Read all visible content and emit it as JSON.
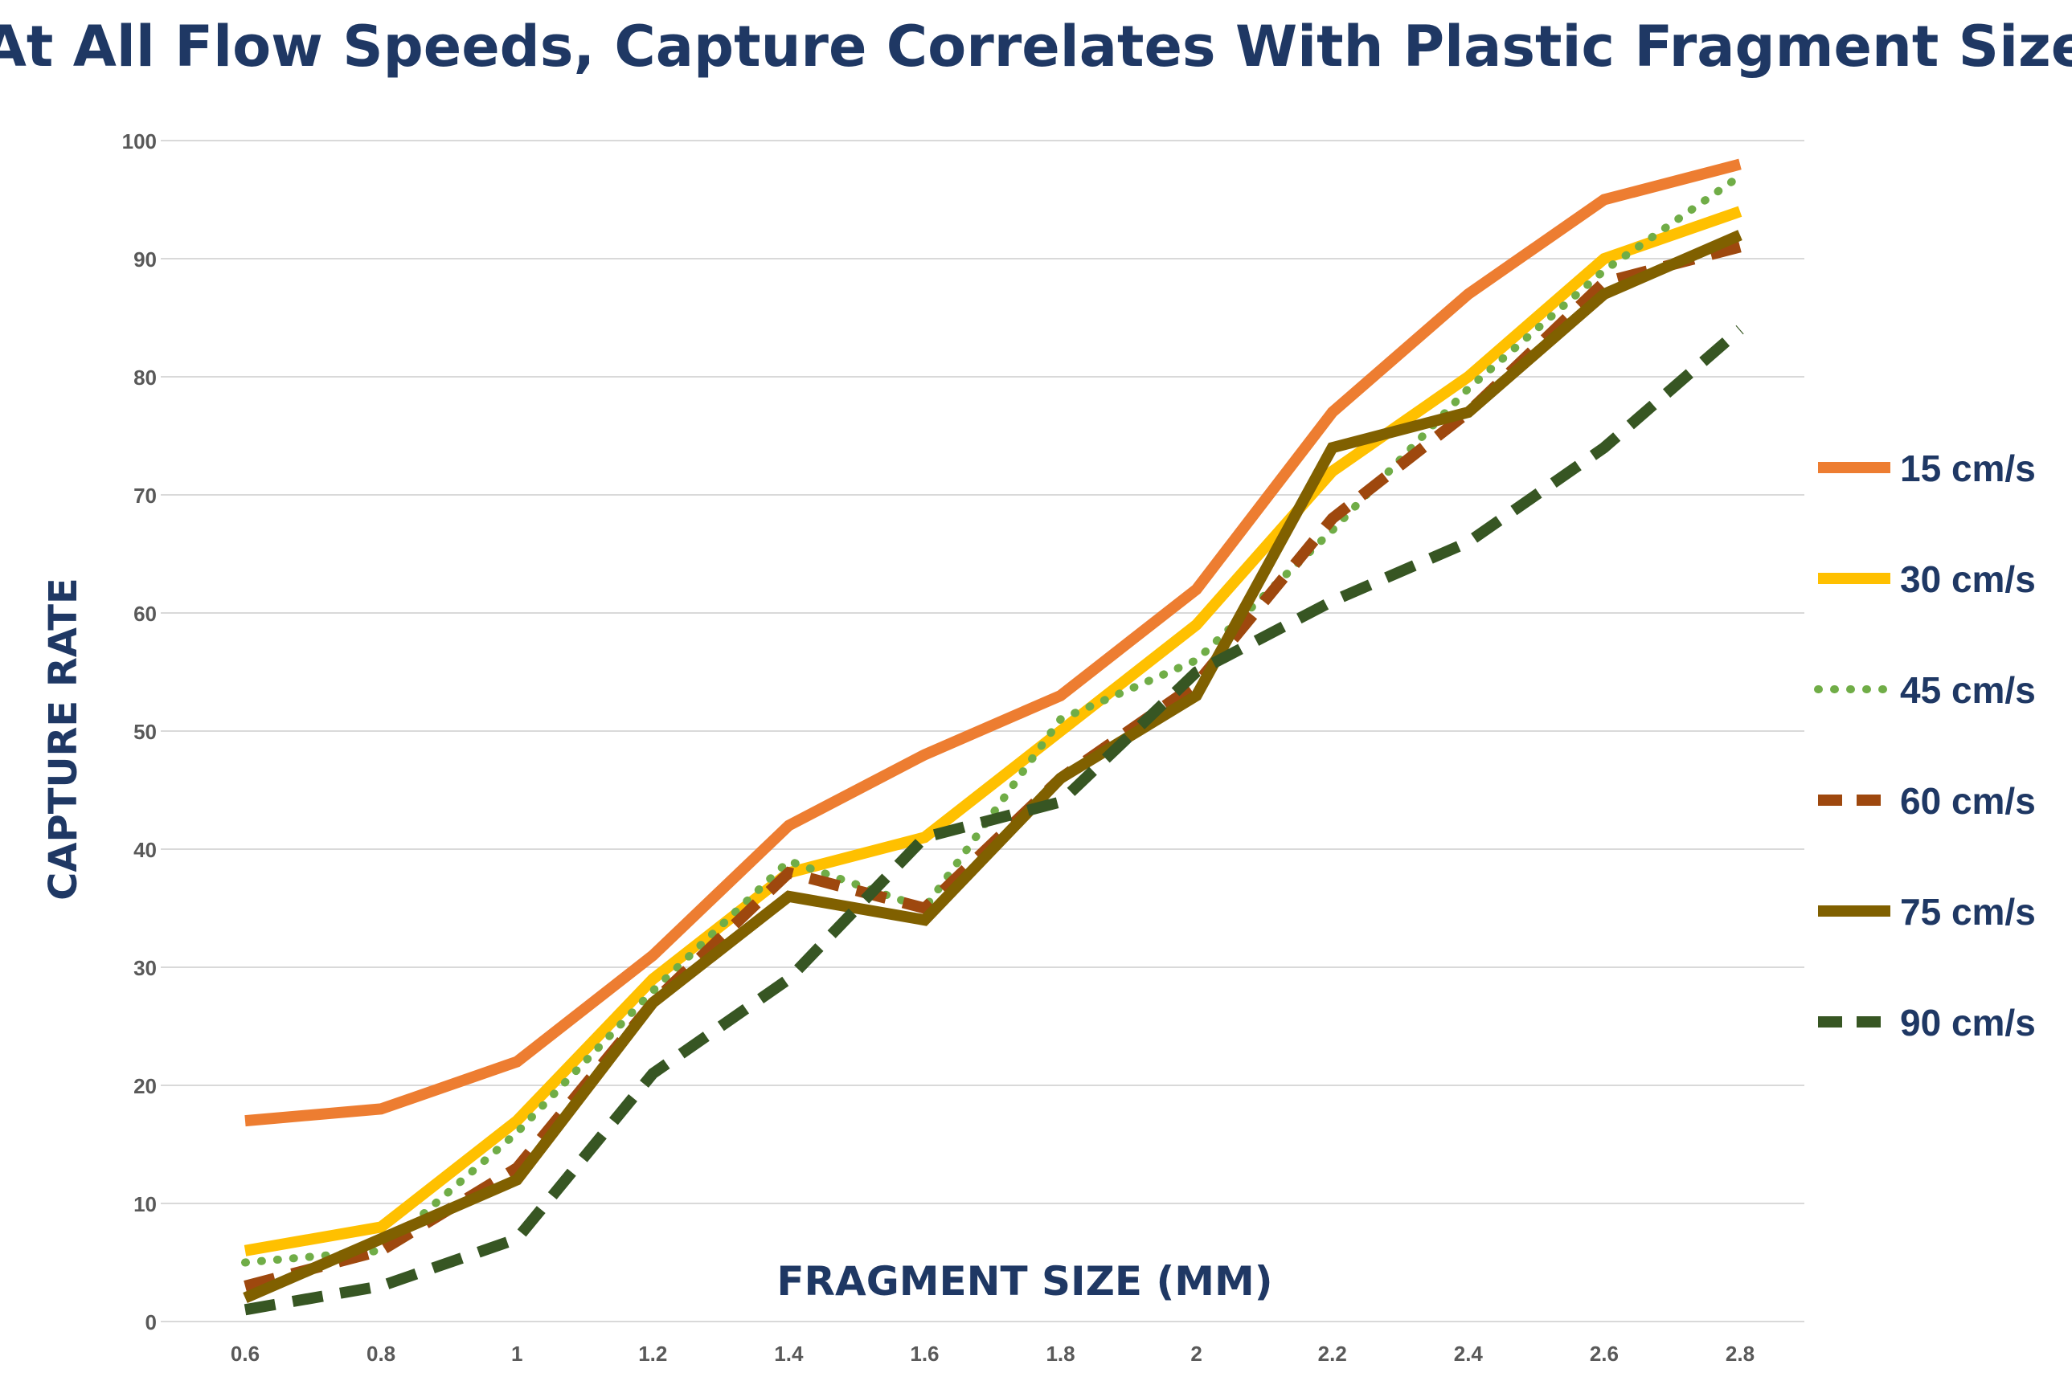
{
  "chart_data": {
    "type": "line",
    "title": "At All Flow Speeds, Capture Correlates With Plastic Fragment Size",
    "xlabel": "FRAGMENT SIZE (MM)",
    "ylabel": "CAPTURE RATE",
    "ylim": [
      0,
      100
    ],
    "yticks": [
      "0",
      "10",
      "20",
      "30",
      "40",
      "50",
      "60",
      "70",
      "80",
      "90",
      "100"
    ],
    "categories": [
      "0.6",
      "0.8",
      "1",
      "1.2",
      "1.4",
      "1.6",
      "1.8",
      "2",
      "2.2",
      "2.4",
      "2.6",
      "2.8"
    ],
    "grid": true,
    "legend_position": "right",
    "series": [
      {
        "name": "15 cm/s",
        "color": "#ed7d31",
        "style": "solid",
        "values": [
          17,
          18,
          22,
          31,
          42,
          48,
          53,
          62,
          77,
          87,
          95,
          98
        ]
      },
      {
        "name": "30 cm/s",
        "color": "#ffc000",
        "style": "solid",
        "values": [
          6,
          8,
          17,
          29,
          38,
          41,
          50,
          59,
          72,
          80,
          90,
          94
        ]
      },
      {
        "name": "45 cm/s",
        "color": "#70ad47",
        "style": "dotted",
        "values": [
          5,
          6,
          16,
          28,
          39,
          35,
          51,
          56,
          67,
          79,
          89,
          97
        ]
      },
      {
        "name": "60 cm/s",
        "color": "#9e480e",
        "style": "dashed",
        "values": [
          3,
          6,
          13,
          27,
          38,
          35,
          46,
          54,
          68,
          77,
          88,
          91
        ]
      },
      {
        "name": "75 cm/s",
        "color": "#806000",
        "style": "solid",
        "values": [
          2,
          7,
          12,
          27,
          36,
          34,
          46,
          53,
          74,
          77,
          87,
          92
        ]
      },
      {
        "name": "90 cm/s",
        "color": "#375623",
        "style": "dashed",
        "values": [
          1,
          3,
          7,
          21,
          29,
          41,
          44,
          55,
          61,
          66,
          74,
          84
        ]
      }
    ]
  }
}
